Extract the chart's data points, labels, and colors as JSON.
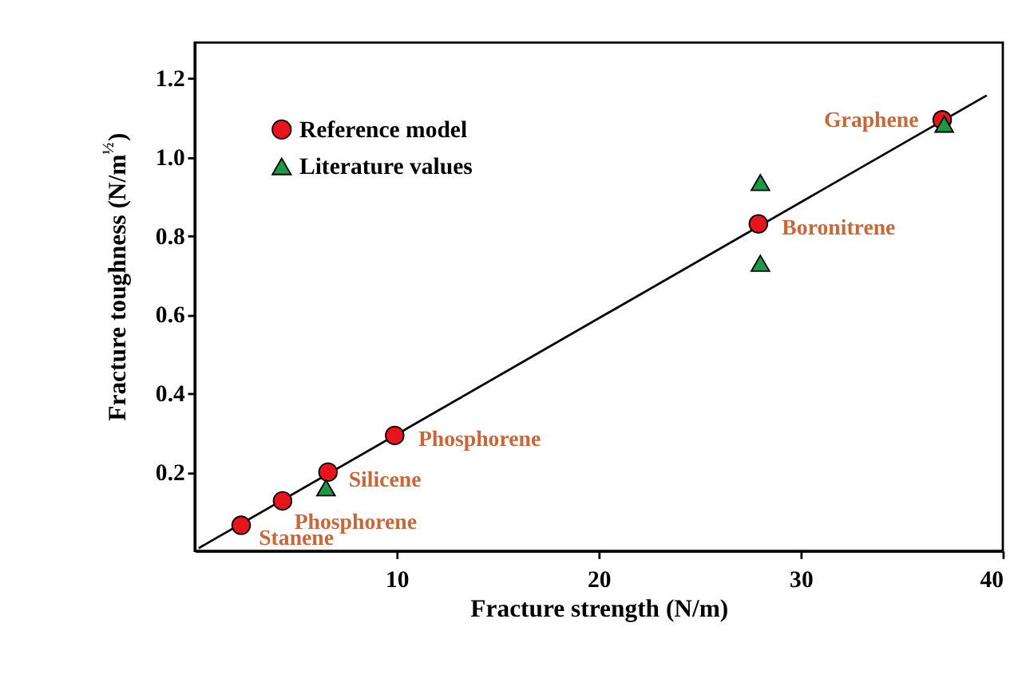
{
  "chart_data": {
    "type": "scatter",
    "xlabel": "Fracture strength (N/m)",
    "ylabel": "Fracture toughness (N/m$^{½}$)",
    "xlim": [
      0,
      40
    ],
    "ylim": [
      0,
      1.29
    ],
    "xticks": [
      10,
      20,
      30,
      40
    ],
    "yticks": [
      {
        "value": 0.2,
        "label": "0.2"
      },
      {
        "value": 0.4,
        "label": "0.4"
      },
      {
        "value": 0.6,
        "label": "0.6"
      },
      {
        "value": 0.8,
        "label": "0.8"
      },
      {
        "value": 1.0,
        "label": "1.0"
      },
      {
        "value": 1.2,
        "label": "1.2"
      }
    ],
    "grid": false,
    "legend": "top left",
    "series": [
      {
        "type": "line",
        "color": "#000000",
        "x": [
          0.2,
          39.2
        ],
        "values": [
          0.007,
          1.156
        ],
        "marker": "none",
        "line_style": "solid"
      },
      {
        "name": "Reference model",
        "color": "#e8141c",
        "marker": "circle",
        "x": [
          2.3,
          4.35,
          6.6,
          9.9,
          27.9,
          37.0
        ],
        "values": [
          0.065,
          0.127,
          0.2,
          0.293,
          0.83,
          1.094
        ]
      },
      {
        "name": "Literature values",
        "color": "#1a9a44",
        "marker": "triangle",
        "x": [
          6.5,
          28.0,
          28.0,
          37.1
        ],
        "values": [
          0.16,
          0.935,
          0.73,
          1.083
        ]
      }
    ],
    "annotations": [
      {
        "text": "Stanene",
        "x": 2.3,
        "y": 0.065
      },
      {
        "text": "Phosphorene",
        "x": 4.35,
        "y": 0.127
      },
      {
        "text": "Silicene",
        "x": 6.6,
        "y": 0.2
      },
      {
        "text": "Phosphorene",
        "x": 9.9,
        "y": 0.293
      },
      {
        "text": "Boronitrene",
        "x": 27.9,
        "y": 0.83
      },
      {
        "text": "Graphene",
        "x": 37.0,
        "y": 1.094
      }
    ]
  }
}
